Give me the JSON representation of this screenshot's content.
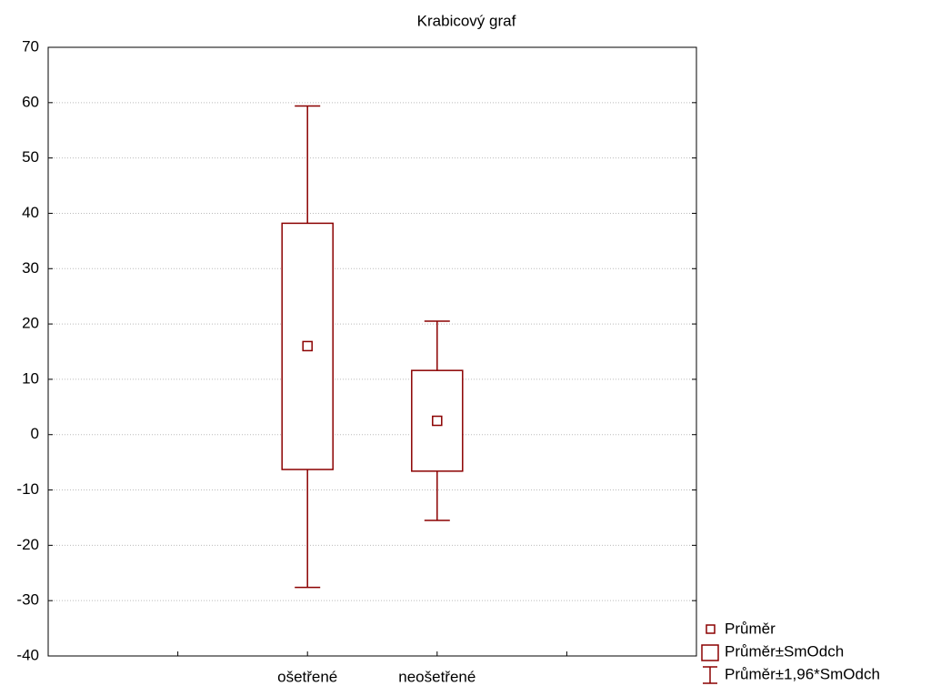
{
  "chart_data": {
    "type": "box",
    "title": "Krabicový graf",
    "categories": [
      null,
      "ošetřené",
      "neošetřené",
      null
    ],
    "color": "#8b0000",
    "mean": [
      null,
      16,
      2.5,
      null
    ],
    "box_low": [
      null,
      -6.3,
      -6.6,
      null
    ],
    "box_high": [
      null,
      38.2,
      11.6,
      null
    ],
    "whisker_low": [
      null,
      -27.6,
      -15.5,
      null
    ],
    "whisker_high": [
      null,
      59.4,
      20.5,
      null
    ],
    "legend": [
      "Průměr",
      "Průměr±SmOdch",
      "Průměr±1,96*SmOdch"
    ],
    "ylim": [
      -40,
      70
    ],
    "yticks": [
      -40,
      -30,
      -20,
      -10,
      0,
      10,
      20,
      30,
      40,
      50,
      60,
      70
    ],
    "grid": true
  }
}
